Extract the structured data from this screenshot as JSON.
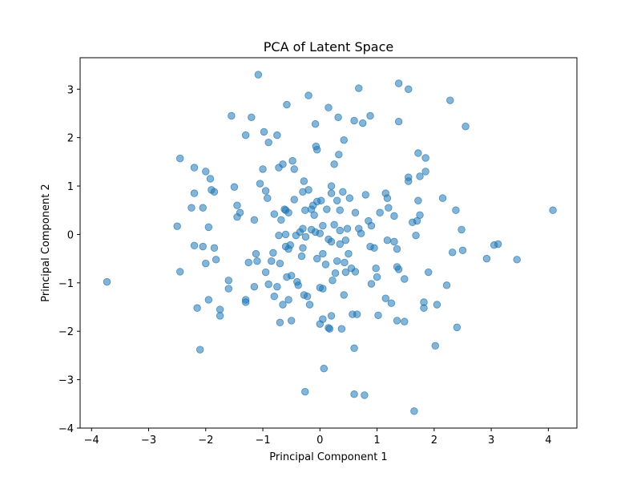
{
  "chart_data": {
    "type": "scatter",
    "title": "PCA of Latent Space",
    "xlabel": "Principal Component 1",
    "ylabel": "Principal Component 2",
    "xlim": [
      -4.2,
      4.5
    ],
    "ylim": [
      -4.0,
      3.65
    ],
    "xticks": [
      -4,
      -3,
      -2,
      -1,
      0,
      1,
      2,
      3,
      4
    ],
    "yticks": [
      -4,
      -3,
      -2,
      -1,
      0,
      1,
      2,
      3
    ],
    "grid": false,
    "marker_color": "#1f77b4",
    "marker_alpha": 0.55,
    "points": [
      [
        -3.73,
        -0.98
      ],
      [
        -2.5,
        0.17
      ],
      [
        -2.45,
        1.57
      ],
      [
        -2.45,
        -0.77
      ],
      [
        -2.25,
        0.55
      ],
      [
        -2.2,
        0.85
      ],
      [
        -2.2,
        1.38
      ],
      [
        -2.2,
        -0.23
      ],
      [
        -2.15,
        -1.52
      ],
      [
        -2.1,
        -2.38
      ],
      [
        -2.05,
        0.55
      ],
      [
        -2.05,
        -0.25
      ],
      [
        -2.0,
        1.3
      ],
      [
        -2.0,
        -0.6
      ],
      [
        -1.95,
        0.15
      ],
      [
        -1.95,
        -1.35
      ],
      [
        -1.92,
        1.15
      ],
      [
        -1.9,
        0.92
      ],
      [
        -1.85,
        0.88
      ],
      [
        -1.85,
        -0.28
      ],
      [
        -1.82,
        -0.52
      ],
      [
        -1.75,
        -1.55
      ],
      [
        -1.75,
        -1.68
      ],
      [
        -1.6,
        -0.95
      ],
      [
        -1.6,
        -1.12
      ],
      [
        -1.55,
        2.45
      ],
      [
        -1.5,
        0.98
      ],
      [
        -1.45,
        0.6
      ],
      [
        -1.45,
        0.36
      ],
      [
        -1.4,
        0.45
      ],
      [
        -1.3,
        -1.35
      ],
      [
        -1.3,
        -1.4
      ],
      [
        -1.3,
        2.05
      ],
      [
        -1.25,
        -0.58
      ],
      [
        -1.2,
        2.42
      ],
      [
        -1.15,
        0.3
      ],
      [
        -1.15,
        -1.08
      ],
      [
        -1.12,
        -0.4
      ],
      [
        -1.1,
        -0.55
      ],
      [
        -1.08,
        3.3
      ],
      [
        -1.05,
        1.05
      ],
      [
        -1.0,
        1.35
      ],
      [
        -0.98,
        2.12
      ],
      [
        -0.95,
        0.9
      ],
      [
        -0.95,
        -0.78
      ],
      [
        -0.92,
        0.75
      ],
      [
        -0.9,
        -1.03
      ],
      [
        -0.9,
        1.9
      ],
      [
        -0.85,
        -0.55
      ],
      [
        -0.82,
        -0.38
      ],
      [
        -0.8,
        -1.28
      ],
      [
        -0.8,
        0.42
      ],
      [
        -0.75,
        -1.08
      ],
      [
        -0.75,
        2.05
      ],
      [
        -0.72,
        1.38
      ],
      [
        -0.72,
        -0.02
      ],
      [
        -0.7,
        -0.6
      ],
      [
        -0.7,
        -1.82
      ],
      [
        -0.68,
        0.3
      ],
      [
        -0.65,
        1.45
      ],
      [
        -0.65,
        -1.45
      ],
      [
        -0.62,
        0.52
      ],
      [
        -0.6,
        0.5
      ],
      [
        -0.6,
        0.0
      ],
      [
        -0.6,
        -0.25
      ],
      [
        -0.58,
        2.68
      ],
      [
        -0.58,
        -0.88
      ],
      [
        -0.55,
        0.45
      ],
      [
        -0.55,
        -0.3
      ],
      [
        -0.55,
        -1.35
      ],
      [
        -0.52,
        -0.22
      ],
      [
        -0.5,
        -0.85
      ],
      [
        -0.5,
        -1.78
      ],
      [
        -0.48,
        1.52
      ],
      [
        -0.45,
        0.72
      ],
      [
        -0.45,
        1.35
      ],
      [
        -0.42,
        -0.02
      ],
      [
        -0.4,
        -0.98
      ],
      [
        -0.38,
        -1.05
      ],
      [
        -0.35,
        0.05
      ],
      [
        -0.32,
        -0.45
      ],
      [
        -0.3,
        0.88
      ],
      [
        -0.3,
        0.12
      ],
      [
        -0.3,
        -0.28
      ],
      [
        -0.28,
        -1.25
      ],
      [
        -0.28,
        1.1
      ],
      [
        -0.26,
        0.5
      ],
      [
        -0.26,
        -3.25
      ],
      [
        -0.25,
        -0.05
      ],
      [
        -0.22,
        -1.28
      ],
      [
        -0.2,
        0.92
      ],
      [
        -0.2,
        2.87
      ],
      [
        -0.18,
        -1.45
      ],
      [
        -0.15,
        0.52
      ],
      [
        -0.15,
        0.1
      ],
      [
        -0.12,
        0.6
      ],
      [
        -0.1,
        0.4
      ],
      [
        -0.08,
        0.05
      ],
      [
        -0.08,
        2.28
      ],
      [
        -0.07,
        1.82
      ],
      [
        -0.05,
        1.75
      ],
      [
        -0.05,
        -0.5
      ],
      [
        -0.05,
        0.68
      ],
      [
        0.0,
        0.02
      ],
      [
        0.0,
        -1.1
      ],
      [
        0.0,
        -1.85
      ],
      [
        0.02,
        0.7
      ],
      [
        0.05,
        -0.4
      ],
      [
        0.05,
        0.18
      ],
      [
        0.05,
        -1.75
      ],
      [
        0.05,
        -1.12
      ],
      [
        0.07,
        -2.77
      ],
      [
        0.1,
        -0.62
      ],
      [
        0.12,
        0.52
      ],
      [
        0.15,
        2.62
      ],
      [
        0.15,
        -0.1
      ],
      [
        0.15,
        -1.93
      ],
      [
        0.17,
        -1.95
      ],
      [
        0.2,
        0.85
      ],
      [
        0.2,
        1.0
      ],
      [
        0.2,
        -0.15
      ],
      [
        0.2,
        -1.68
      ],
      [
        0.22,
        -0.95
      ],
      [
        0.25,
        0.2
      ],
      [
        0.25,
        1.45
      ],
      [
        0.27,
        -0.8
      ],
      [
        0.3,
        0.7
      ],
      [
        0.3,
        -0.55
      ],
      [
        0.32,
        2.42
      ],
      [
        0.33,
        1.65
      ],
      [
        0.35,
        0.08
      ],
      [
        0.35,
        0.5
      ],
      [
        0.35,
        -0.2
      ],
      [
        0.38,
        -1.95
      ],
      [
        0.4,
        0.88
      ],
      [
        0.42,
        1.95
      ],
      [
        0.42,
        -1.25
      ],
      [
        0.43,
        -0.58
      ],
      [
        0.45,
        -0.12
      ],
      [
        0.45,
        -0.78
      ],
      [
        0.48,
        0.12
      ],
      [
        0.5,
        -0.4
      ],
      [
        0.52,
        0.75
      ],
      [
        0.55,
        -0.7
      ],
      [
        0.57,
        -1.65
      ],
      [
        0.6,
        -3.3
      ],
      [
        0.6,
        2.35
      ],
      [
        0.6,
        -2.35
      ],
      [
        0.62,
        0.45
      ],
      [
        0.62,
        -0.77
      ],
      [
        0.65,
        -1.65
      ],
      [
        0.68,
        3.02
      ],
      [
        0.68,
        0.12
      ],
      [
        0.72,
        0.02
      ],
      [
        0.75,
        2.3
      ],
      [
        0.78,
        -3.32
      ],
      [
        0.8,
        0.82
      ],
      [
        0.85,
        0.28
      ],
      [
        0.88,
        -0.25
      ],
      [
        0.88,
        2.45
      ],
      [
        0.9,
        0.18
      ],
      [
        0.9,
        -1.02
      ],
      [
        0.95,
        -0.28
      ],
      [
        0.98,
        -0.7
      ],
      [
        1.0,
        -0.88
      ],
      [
        1.02,
        -1.67
      ],
      [
        1.05,
        0.45
      ],
      [
        1.15,
        -1.32
      ],
      [
        1.15,
        0.85
      ],
      [
        1.18,
        0.75
      ],
      [
        1.18,
        -0.12
      ],
      [
        1.2,
        0.55
      ],
      [
        1.25,
        -1.42
      ],
      [
        1.3,
        0.38
      ],
      [
        1.3,
        -0.15
      ],
      [
        1.35,
        -0.3
      ],
      [
        1.35,
        -0.67
      ],
      [
        1.35,
        -1.78
      ],
      [
        1.38,
        -0.72
      ],
      [
        1.38,
        3.12
      ],
      [
        1.38,
        2.33
      ],
      [
        1.48,
        -0.92
      ],
      [
        1.48,
        -1.8
      ],
      [
        1.55,
        3.0
      ],
      [
        1.55,
        1.18
      ],
      [
        1.55,
        1.1
      ],
      [
        1.62,
        0.25
      ],
      [
        1.65,
        -3.65
      ],
      [
        1.68,
        -0.02
      ],
      [
        1.7,
        0.28
      ],
      [
        1.72,
        1.68
      ],
      [
        1.72,
        0.7
      ],
      [
        1.75,
        1.2
      ],
      [
        1.75,
        0.4
      ],
      [
        1.82,
        -1.4
      ],
      [
        1.82,
        -1.52
      ],
      [
        1.85,
        1.58
      ],
      [
        1.85,
        1.3
      ],
      [
        1.9,
        -0.78
      ],
      [
        2.02,
        -2.3
      ],
      [
        2.05,
        -1.45
      ],
      [
        2.15,
        0.75
      ],
      [
        2.22,
        -1.05
      ],
      [
        2.28,
        2.77
      ],
      [
        2.32,
        -0.37
      ],
      [
        2.38,
        0.5
      ],
      [
        2.4,
        -1.92
      ],
      [
        2.48,
        0.1
      ],
      [
        2.5,
        -0.33
      ],
      [
        2.55,
        2.23
      ],
      [
        2.92,
        -0.5
      ],
      [
        3.05,
        -0.22
      ],
      [
        3.12,
        -0.2
      ],
      [
        3.45,
        -0.52
      ],
      [
        4.08,
        0.5
      ]
    ]
  }
}
